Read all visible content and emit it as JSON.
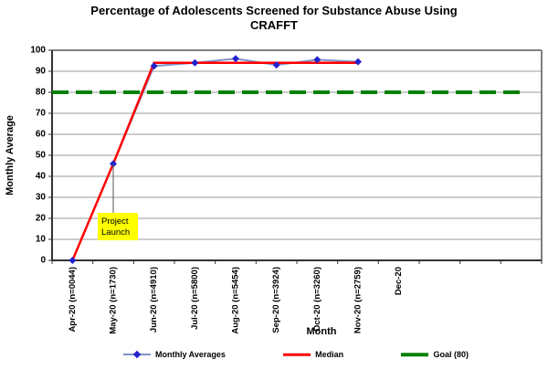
{
  "chart_data": {
    "type": "line",
    "title": "Percentage of Adolescents Screened for Substance Abuse Using CRAFFT",
    "title_lines": [
      "Percentage of Adolescents Screened for Substance Abuse Using",
      "CRAFFT"
    ],
    "xlabel": "Month",
    "ylabel": "Monthly Average",
    "ylim": [
      0,
      100
    ],
    "ytick_step": 10,
    "grid": true,
    "legend_position": "bottom",
    "categories": [
      "Apr-20 (n=0044)",
      "May-20 (n=1730)",
      "Jun-20 (n=4910)",
      "Jul-20 (n=5800)",
      "Aug-20 (n=5454)",
      "Sep-20 (n=3924)",
      "Oct-20 (n=3260)",
      "Nov-20 (n=2759)",
      "Dec-20",
      "",
      "",
      ""
    ],
    "series": [
      {
        "name": "Monthly Averages",
        "color": "#8093c8",
        "marker": "diamond",
        "marker_color": "#2222cc",
        "values": [
          0,
          46,
          92.5,
          94,
          96,
          93,
          95.5,
          94.5,
          null,
          null,
          null,
          null
        ]
      },
      {
        "name": "Median",
        "color": "#ff0000",
        "values": [
          0,
          46,
          94,
          94,
          94,
          94,
          94,
          94,
          null,
          null,
          null,
          null
        ]
      },
      {
        "name": "Goal (80)",
        "color": "#008000",
        "dashed": true,
        "full_width": true,
        "values": [
          80,
          80,
          80,
          80,
          80,
          80,
          80,
          80,
          80,
          80,
          80,
          80
        ]
      }
    ],
    "annotation": {
      "text": "Project Launch",
      "lines": [
        "Project",
        "Launch"
      ],
      "category_index": 1,
      "value": 46,
      "bg_color": "#ffff00"
    },
    "axis_colors": {
      "grid": "#999999",
      "border": "#808080",
      "axis": "#333333"
    }
  }
}
